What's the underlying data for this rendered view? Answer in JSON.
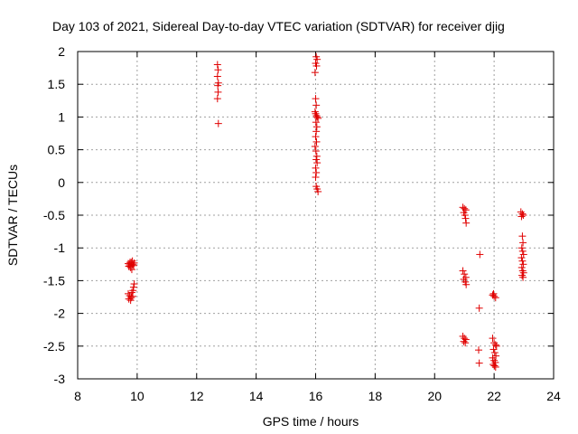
{
  "chart_data": {
    "type": "scatter",
    "title": "Day 103 of 2021, Sidereal Day-to-day VTEC variation (SDTVAR) for receiver djig",
    "xlabel": "GPS time / hours",
    "ylabel": "SDTVAR / TECUs",
    "xlim": [
      8,
      24
    ],
    "ylim": [
      -3,
      2
    ],
    "xticks": [
      8,
      10,
      12,
      14,
      16,
      18,
      20,
      22,
      24
    ],
    "yticks": [
      -3,
      -2.5,
      -2,
      -1.5,
      -1,
      -0.5,
      0,
      0.5,
      1,
      1.5,
      2
    ],
    "xtick_labels": [
      "8",
      "10",
      "12",
      "14",
      "16",
      "18",
      "20",
      "22",
      "24"
    ],
    "ytick_labels": [
      "-3",
      "-2.5",
      "-2",
      "-1.5",
      "-1",
      "-0.5",
      "0",
      "0.5",
      "1",
      "1.5",
      "2"
    ],
    "grid": true,
    "marker": "+",
    "color": "#e00000",
    "series": [
      {
        "name": "SDTVAR",
        "points": [
          [
            9.7,
            -1.24
          ],
          [
            9.75,
            -1.26
          ],
          [
            9.8,
            -1.22
          ],
          [
            9.85,
            -1.25
          ],
          [
            9.9,
            -1.23
          ],
          [
            9.72,
            -1.28
          ],
          [
            9.78,
            -1.3
          ],
          [
            9.82,
            -1.33
          ],
          [
            9.88,
            -1.27
          ],
          [
            9.76,
            -1.22
          ],
          [
            9.84,
            -1.2
          ],
          [
            9.7,
            -1.7
          ],
          [
            9.75,
            -1.73
          ],
          [
            9.8,
            -1.76
          ],
          [
            9.72,
            -1.78
          ],
          [
            9.78,
            -1.8
          ],
          [
            9.85,
            -1.74
          ],
          [
            9.88,
            -1.6
          ],
          [
            9.9,
            -1.55
          ],
          [
            9.86,
            -1.65
          ],
          [
            9.82,
            -1.68
          ],
          [
            12.7,
            1.8
          ],
          [
            12.72,
            1.72
          ],
          [
            12.7,
            1.62
          ],
          [
            12.73,
            1.52
          ],
          [
            12.71,
            1.48
          ],
          [
            12.72,
            1.38
          ],
          [
            12.7,
            1.28
          ],
          [
            12.73,
            0.9
          ],
          [
            16.02,
            1.92
          ],
          [
            16.05,
            1.88
          ],
          [
            16.0,
            1.82
          ],
          [
            16.03,
            1.78
          ],
          [
            15.98,
            1.68
          ],
          [
            16.0,
            1.28
          ],
          [
            16.02,
            1.18
          ],
          [
            15.98,
            1.08
          ],
          [
            16.0,
            1.05
          ],
          [
            16.03,
            1.02
          ],
          [
            16.05,
            1.0
          ],
          [
            16.08,
            0.98
          ],
          [
            16.01,
            0.92
          ],
          [
            16.04,
            0.85
          ],
          [
            16.02,
            0.78
          ],
          [
            16.0,
            0.7
          ],
          [
            16.03,
            0.62
          ],
          [
            15.98,
            0.55
          ],
          [
            16.01,
            0.48
          ],
          [
            16.04,
            0.4
          ],
          [
            16.02,
            0.35
          ],
          [
            16.05,
            0.3
          ],
          [
            16.0,
            0.22
          ],
          [
            16.02,
            0.15
          ],
          [
            16.0,
            0.08
          ],
          [
            16.02,
            -0.06
          ],
          [
            16.05,
            -0.1
          ],
          [
            16.08,
            -0.14
          ],
          [
            20.95,
            -0.38
          ],
          [
            21.0,
            -0.4
          ],
          [
            21.05,
            -0.42
          ],
          [
            20.98,
            -0.46
          ],
          [
            21.02,
            -0.5
          ],
          [
            21.04,
            -0.55
          ],
          [
            21.06,
            -0.62
          ],
          [
            20.95,
            -1.35
          ],
          [
            21.0,
            -1.4
          ],
          [
            21.05,
            -1.45
          ],
          [
            20.98,
            -1.48
          ],
          [
            21.03,
            -1.52
          ],
          [
            21.06,
            -1.56
          ],
          [
            20.95,
            -2.35
          ],
          [
            21.0,
            -2.38
          ],
          [
            21.05,
            -2.4
          ],
          [
            20.98,
            -2.43
          ],
          [
            21.03,
            -2.45
          ],
          [
            21.52,
            -1.1
          ],
          [
            21.5,
            -1.92
          ],
          [
            21.48,
            -2.56
          ],
          [
            21.5,
            -2.76
          ],
          [
            21.95,
            -1.72
          ],
          [
            22.0,
            -1.74
          ],
          [
            22.05,
            -1.76
          ],
          [
            21.98,
            -1.7
          ],
          [
            21.95,
            -2.38
          ],
          [
            22.0,
            -2.45
          ],
          [
            22.05,
            -2.48
          ],
          [
            22.08,
            -2.5
          ],
          [
            21.98,
            -2.55
          ],
          [
            22.02,
            -2.6
          ],
          [
            22.06,
            -2.65
          ],
          [
            21.95,
            -2.68
          ],
          [
            22.0,
            -2.72
          ],
          [
            22.04,
            -2.75
          ],
          [
            21.97,
            -2.78
          ],
          [
            22.01,
            -2.8
          ],
          [
            22.05,
            -2.82
          ],
          [
            22.9,
            -0.45
          ],
          [
            22.95,
            -0.48
          ],
          [
            22.98,
            -0.5
          ],
          [
            22.92,
            -0.52
          ],
          [
            22.95,
            -0.82
          ],
          [
            22.97,
            -0.92
          ],
          [
            22.93,
            -1.0
          ],
          [
            22.96,
            -1.05
          ],
          [
            22.99,
            -1.1
          ],
          [
            22.92,
            -1.15
          ],
          [
            22.95,
            -1.2
          ],
          [
            22.98,
            -1.25
          ],
          [
            22.93,
            -1.3
          ],
          [
            22.96,
            -1.35
          ],
          [
            22.99,
            -1.38
          ],
          [
            22.94,
            -1.42
          ],
          [
            22.97,
            -1.45
          ]
        ]
      }
    ]
  }
}
